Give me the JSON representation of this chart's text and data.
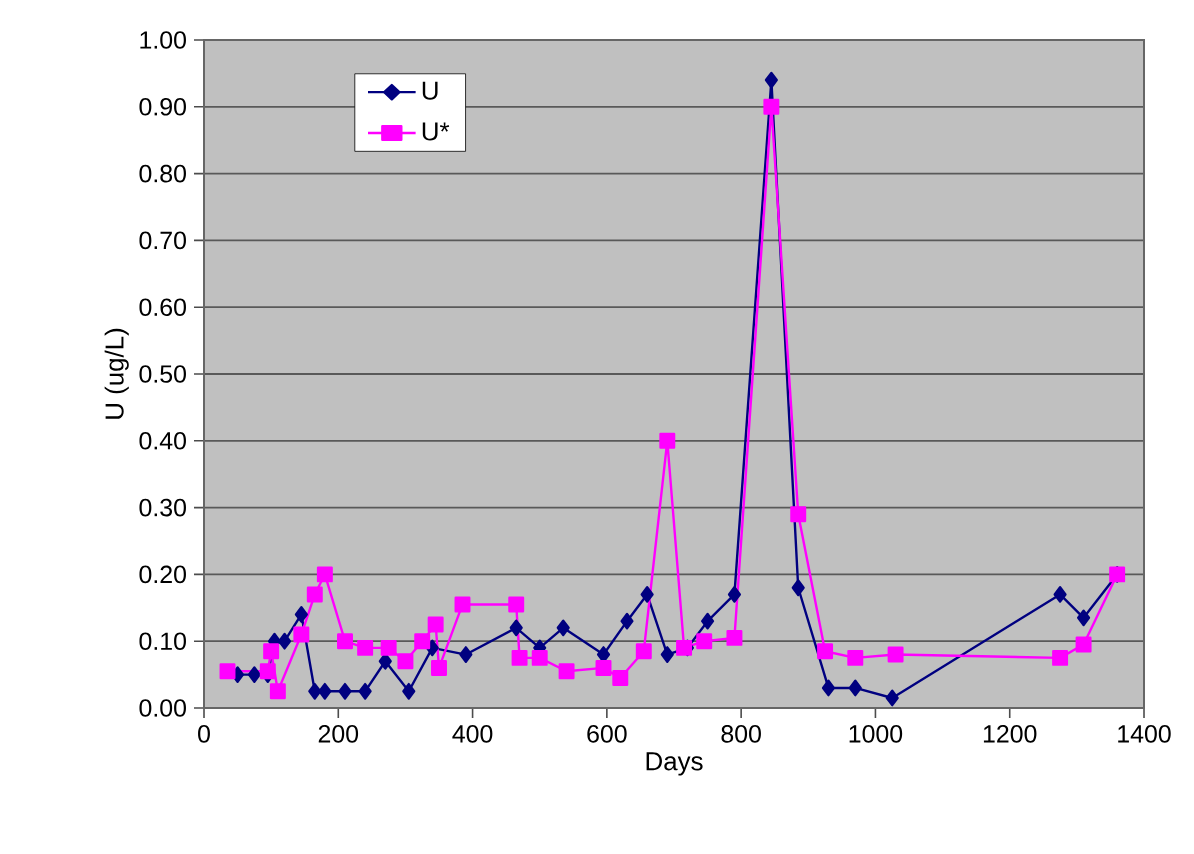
{
  "chart_data": {
    "type": "line",
    "xlabel": "Days",
    "ylabel": "U (ug/L)",
    "xlim": [
      0,
      1400
    ],
    "xticks": [
      0,
      200,
      400,
      600,
      800,
      1000,
      1200,
      1400
    ],
    "ylim": [
      0,
      1
    ],
    "yticks": [
      {
        "value": 0,
        "label": "0.00"
      },
      {
        "value": 0.1,
        "label": "0.10"
      },
      {
        "value": 0.2,
        "label": "0.20"
      },
      {
        "value": 0.3,
        "label": "0.30"
      },
      {
        "value": 0.4,
        "label": "0.40"
      },
      {
        "value": 0.5,
        "label": "0.50"
      },
      {
        "value": 0.6,
        "label": "0.60"
      },
      {
        "value": 0.7,
        "label": "0.70"
      },
      {
        "value": 0.8,
        "label": "0.80"
      },
      {
        "value": 0.9,
        "label": "0.90"
      },
      {
        "value": 1,
        "label": "1.00"
      }
    ],
    "grid": "y",
    "legend": "top left",
    "series": [
      {
        "name": "U",
        "color": "#000080",
        "marker": "diamond",
        "x": [
          50,
          75,
          95,
          105,
          120,
          145,
          165,
          180,
          210,
          240,
          270,
          305,
          340,
          390,
          465,
          500,
          535,
          595,
          630,
          660,
          690,
          720,
          750,
          790,
          845,
          885,
          930,
          970,
          1025,
          1275,
          1310,
          1360
        ],
        "values": [
          0.05,
          0.05,
          0.05,
          0.1,
          0.1,
          0.14,
          0.025,
          0.025,
          0.025,
          0.025,
          0.07,
          0.025,
          0.09,
          0.08,
          0.12,
          0.09,
          0.12,
          0.08,
          0.13,
          0.17,
          0.08,
          0.09,
          0.13,
          0.17,
          0.94,
          0.18,
          0.03,
          0.03,
          0.015,
          0.17,
          0.135,
          0.2
        ]
      },
      {
        "name": "U*",
        "color": "#ff00ff",
        "marker": "square",
        "x": [
          35,
          95,
          100,
          110,
          145,
          165,
          180,
          210,
          240,
          275,
          300,
          325,
          345,
          350,
          385,
          465,
          470,
          500,
          540,
          595,
          620,
          655,
          690,
          715,
          745,
          790,
          845,
          885,
          925,
          970,
          1030,
          1275,
          1310,
          1360
        ],
        "values": [
          0.055,
          0.055,
          0.085,
          0.025,
          0.11,
          0.17,
          0.2,
          0.1,
          0.09,
          0.09,
          0.07,
          0.1,
          0.125,
          0.06,
          0.155,
          0.155,
          0.075,
          0.075,
          0.055,
          0.06,
          0.045,
          0.085,
          0.4,
          0.09,
          0.1,
          0.105,
          0.9,
          0.29,
          0.085,
          0.075,
          0.08,
          0.075,
          0.095,
          0.2
        ]
      }
    ]
  }
}
